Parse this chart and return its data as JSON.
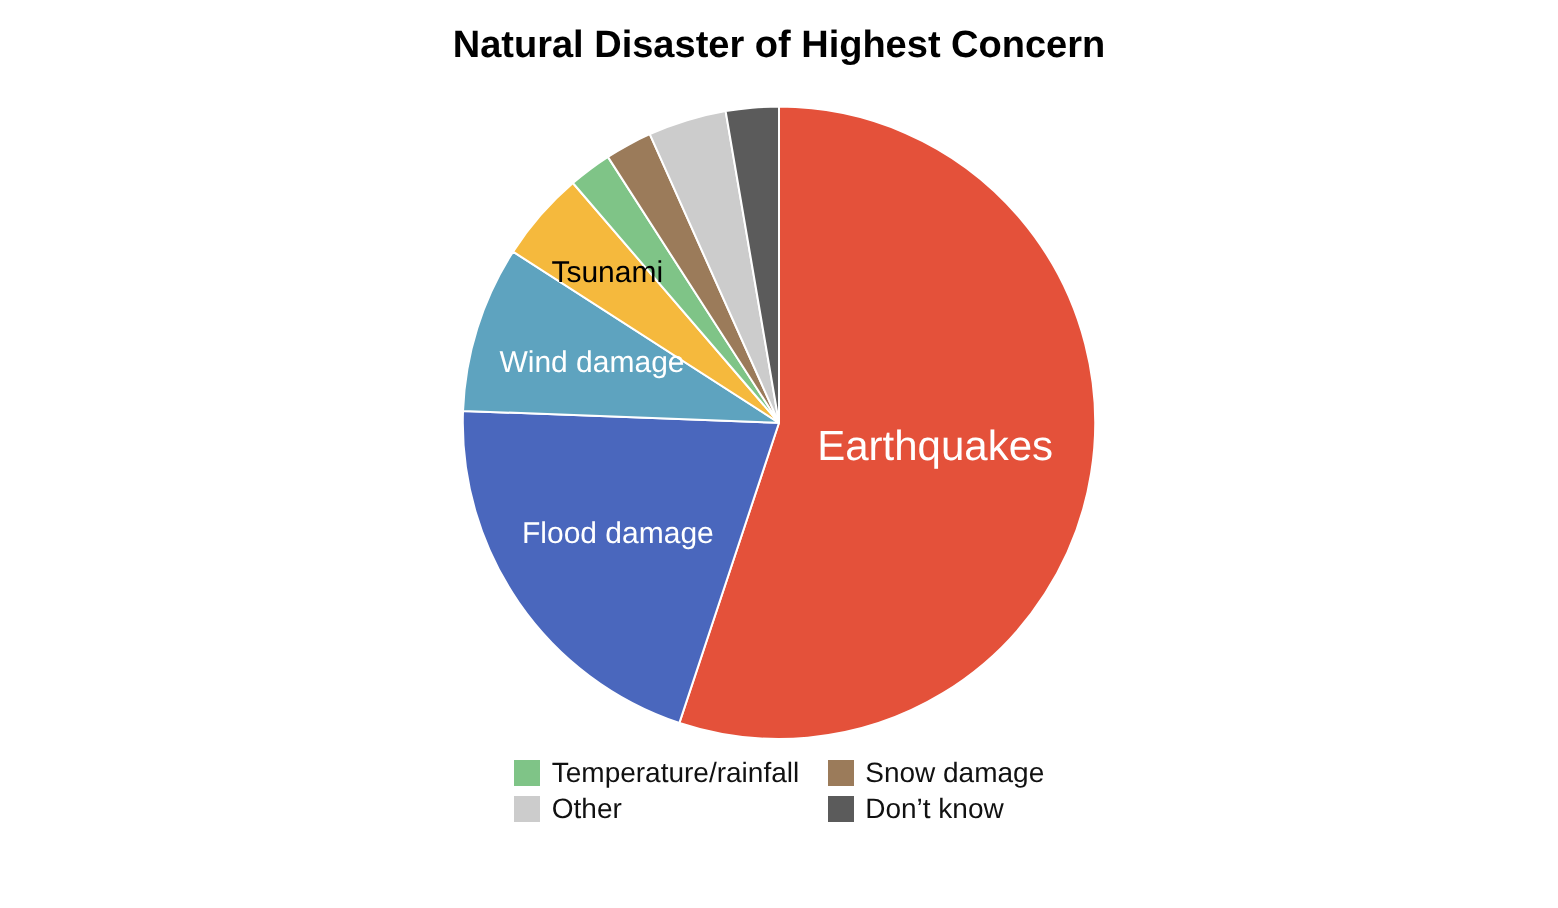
{
  "chart_data": {
    "type": "pie",
    "title": "Natural Disaster of Highest Concern",
    "categories": [
      "Earthquakes",
      "Flood damage",
      "Wind damage",
      "Tsunami",
      "Temperature/rainfall",
      "Snow damage",
      "Other",
      "Don’t know"
    ],
    "values": [
      55.1,
      20.5,
      8.5,
      4.6,
      2.2,
      2.4,
      4.0,
      2.7
    ],
    "colors": [
      "#e4513a",
      "#4a67bd",
      "#5ea3bf",
      "#f5b93d",
      "#7fc487",
      "#9b7b5a",
      "#cccccc",
      "#5b5b5b"
    ],
    "legend": "bottom"
  }
}
